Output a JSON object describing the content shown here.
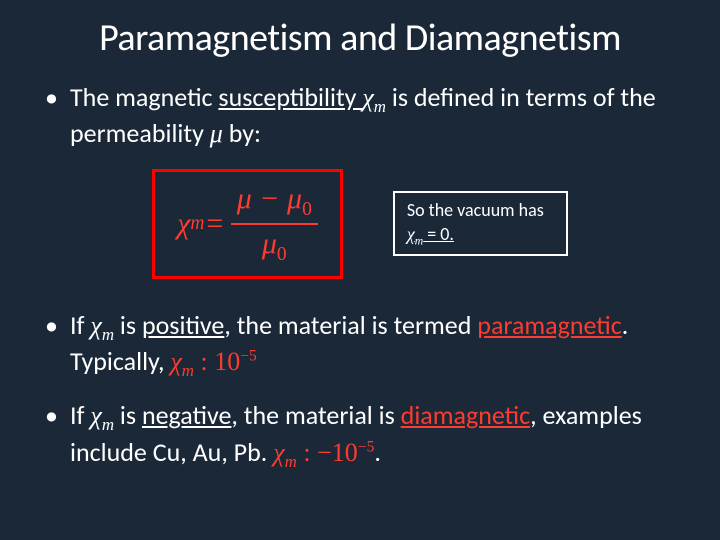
{
  "colors": {
    "background": "#1a2838",
    "text": "#ffffff",
    "highlight": "#ff3b2f",
    "box_border": "#ff0000",
    "note_border": "#ffffff"
  },
  "typography": {
    "title_fontsize": 38,
    "body_fontsize": 26,
    "note_fontsize": 18,
    "equation_fontsize": 30,
    "title_font": "Calibri",
    "math_font": "Times New Roman"
  },
  "title": "Paramagnetism and Diamagnetism",
  "bullet1": {
    "pre": "The magnetic ",
    "susc": "susceptibility ",
    "chi": "χ",
    "chi_sub": "m",
    "mid": " is defined in terms of the permeability ",
    "mu": "μ",
    "post": " by:"
  },
  "equation": {
    "lhs_chi": "χ",
    "lhs_sub": "m",
    "eq": " = ",
    "num_a": "μ",
    "num_minus": " − ",
    "num_b": "μ",
    "num_b_sub": "0",
    "den": "μ",
    "den_sub": "0"
  },
  "note": {
    "line1": "So the vacuum has ",
    "chi": "χ",
    "chi_sub": "m",
    "line2": " = 0."
  },
  "bullet2": {
    "pre": "If ",
    "chi": "χ",
    "chi_sub": "m",
    "mid1": " is ",
    "positive": "positive",
    "mid2": ", the material is termed ",
    "para": "paramagnetic",
    "post": ".  Typically, ",
    "math_chi": "χ",
    "math_sub": "m",
    "math_colon": " : ",
    "math_val": "10",
    "math_exp": "−5"
  },
  "bullet3": {
    "pre": "If ",
    "chi": "χ",
    "chi_sub": "m",
    "mid1": " is ",
    "negative": "negative",
    "mid2": ", the material is ",
    "dia": "diamagnetic",
    "mid3": ", examples include Cu, Au, Pb. ",
    "math_chi": "χ",
    "math_sub": "m",
    "math_colon": " : ",
    "math_neg": "−10",
    "math_exp": "−5",
    "period": "."
  }
}
